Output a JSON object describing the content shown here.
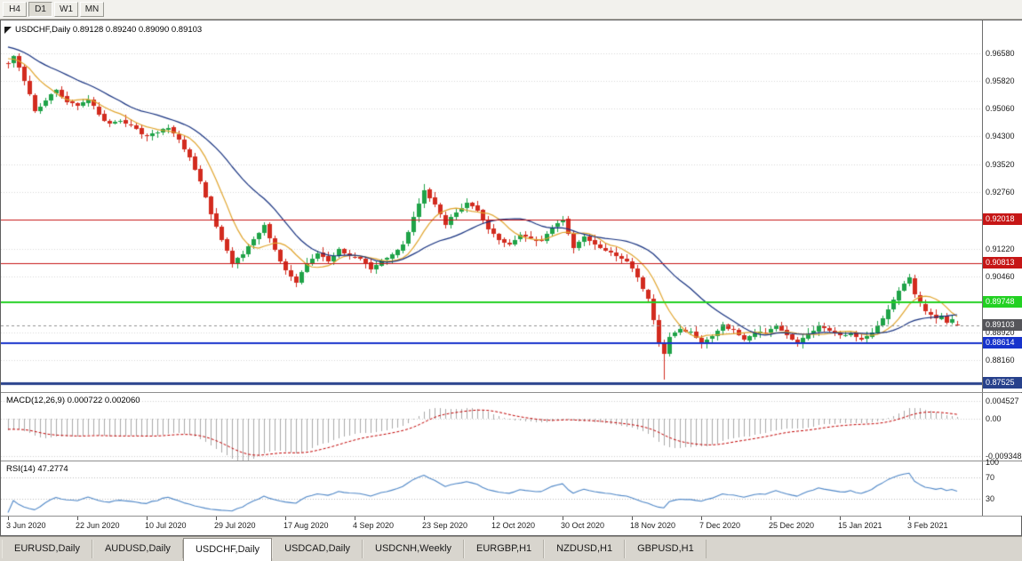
{
  "toolbar": {
    "timeframe_buttons": [
      {
        "label": "H4",
        "active": false
      },
      {
        "label": "D1",
        "active": true
      },
      {
        "label": "W1",
        "active": false
      },
      {
        "label": "MN",
        "active": false
      }
    ]
  },
  "main_chart": {
    "legend": "USDCHF,Daily 0.89128 0.89240 0.89090 0.89103",
    "axis_plain_labels": [
      "0.96580",
      "0.95820",
      "0.95060",
      "0.94300",
      "0.93520",
      "0.92760",
      "0.91220",
      "0.90460",
      "0.88920",
      "0.88160"
    ],
    "current_price_tag": {
      "text": "0.89103",
      "bg": "#55555a"
    },
    "levels": [
      {
        "price": 0.92018,
        "text": "0.92018",
        "color": "#c61616",
        "width": 1
      },
      {
        "price": 0.90813,
        "text": "0.90813",
        "color": "#c61616",
        "width": 1
      },
      {
        "price": 0.89748,
        "text": "0.89748",
        "color": "#22d122",
        "width": 2
      },
      {
        "price": 0.88614,
        "text": "0.88614",
        "color": "#1733cc",
        "width": 2
      },
      {
        "price": 0.87525,
        "text": "0.87525",
        "color": "#27418c",
        "width": 3
      }
    ]
  },
  "macd_panel": {
    "legend": "MACD(12,26,9) 0.000722 0.002060",
    "axis_labels": [
      "0.004527",
      "0.00",
      "-0.009348"
    ]
  },
  "rsi_panel": {
    "legend": "RSI(14) 47.2774",
    "axis_labels": [
      "100",
      "70",
      "30"
    ]
  },
  "time_axis": [
    "3 Jun 2020",
    "22 Jun 2020",
    "10 Jul 2020",
    "29 Jul 2020",
    "17 Aug 2020",
    "4 Sep 2020",
    "23 Sep 2020",
    "12 Oct 2020",
    "30 Oct 2020",
    "18 Nov 2020",
    "7 Dec 2020",
    "25 Dec 2020",
    "15 Jan 2021",
    "3 Feb 2021"
  ],
  "tabs": [
    {
      "label": "EURUSD,Daily",
      "active": false
    },
    {
      "label": "AUDUSD,Daily",
      "active": false
    },
    {
      "label": "USDCHF,Daily",
      "active": true
    },
    {
      "label": "USDCAD,Daily",
      "active": false
    },
    {
      "label": "USDCNH,Weekly",
      "active": false
    },
    {
      "label": "EURGBP,H1",
      "active": false
    },
    {
      "label": "NZDUSD,H1",
      "active": false
    },
    {
      "label": "GBPUSD,H1",
      "active": false
    }
  ],
  "chart_data": {
    "type": "candlestick",
    "title": "USDCHF,Daily",
    "symbol": "USDCHF",
    "timeframe": "Daily",
    "ohlc_current": {
      "open": 0.89128,
      "high": 0.8924,
      "low": 0.8909,
      "close": 0.89103
    },
    "price_range": {
      "top": 0.9748,
      "bottom": 0.8728
    },
    "bars_visible": 179,
    "bars_per_tick": 13,
    "x_tick_labels": [
      "3 Jun 2020",
      "22 Jun 2020",
      "10 Jul 2020",
      "29 Jul 2020",
      "17 Aug 2020",
      "4 Sep 2020",
      "23 Sep 2020",
      "12 Oct 2020",
      "30 Oct 2020",
      "18 Nov 2020",
      "7 Dec 2020",
      "25 Dec 2020",
      "15 Jan 2021",
      "3 Feb 2021"
    ],
    "close_anchors": [
      [
        0,
        0.9628
      ],
      [
        1,
        0.9648
      ],
      [
        2,
        0.9618
      ],
      [
        4,
        0.9545
      ],
      [
        5,
        0.9498
      ],
      [
        7,
        0.953
      ],
      [
        9,
        0.9555
      ],
      [
        11,
        0.9522
      ],
      [
        13,
        0.9515
      ],
      [
        15,
        0.9532
      ],
      [
        17,
        0.9488
      ],
      [
        19,
        0.9462
      ],
      [
        21,
        0.9475
      ],
      [
        24,
        0.9448
      ],
      [
        26,
        0.9428
      ],
      [
        28,
        0.9442
      ],
      [
        30,
        0.9452
      ],
      [
        32,
        0.9418
      ],
      [
        34,
        0.9372
      ],
      [
        36,
        0.9305
      ],
      [
        38,
        0.9218
      ],
      [
        40,
        0.9148
      ],
      [
        42,
        0.9082
      ],
      [
        44,
        0.9108
      ],
      [
        46,
        0.9148
      ],
      [
        48,
        0.9185
      ],
      [
        50,
        0.9118
      ],
      [
        52,
        0.9062
      ],
      [
        54,
        0.9028
      ],
      [
        56,
        0.9082
      ],
      [
        58,
        0.9108
      ],
      [
        60,
        0.9088
      ],
      [
        62,
        0.9118
      ],
      [
        64,
        0.9102
      ],
      [
        66,
        0.9092
      ],
      [
        68,
        0.9068
      ],
      [
        70,
        0.9088
      ],
      [
        72,
        0.9108
      ],
      [
        74,
        0.9132
      ],
      [
        76,
        0.9205
      ],
      [
        78,
        0.9282
      ],
      [
        80,
        0.9242
      ],
      [
        82,
        0.9188
      ],
      [
        84,
        0.9222
      ],
      [
        86,
        0.9248
      ],
      [
        88,
        0.9228
      ],
      [
        90,
        0.9172
      ],
      [
        92,
        0.9148
      ],
      [
        94,
        0.9132
      ],
      [
        96,
        0.9162
      ],
      [
        98,
        0.9148
      ],
      [
        100,
        0.9142
      ],
      [
        102,
        0.9182
      ],
      [
        104,
        0.9202
      ],
      [
        106,
        0.9122
      ],
      [
        108,
        0.9158
      ],
      [
        110,
        0.9132
      ],
      [
        112,
        0.9118
      ],
      [
        114,
        0.9102
      ],
      [
        116,
        0.9088
      ],
      [
        118,
        0.9042
      ],
      [
        120,
        0.8982
      ],
      [
        122,
        0.8868
      ],
      [
        123,
        0.8832
      ],
      [
        124,
        0.8882
      ],
      [
        126,
        0.8902
      ],
      [
        128,
        0.8892
      ],
      [
        130,
        0.8858
      ],
      [
        132,
        0.8882
      ],
      [
        134,
        0.8912
      ],
      [
        136,
        0.8898
      ],
      [
        138,
        0.8872
      ],
      [
        140,
        0.8888
      ],
      [
        142,
        0.8892
      ],
      [
        144,
        0.8912
      ],
      [
        146,
        0.8882
      ],
      [
        148,
        0.8862
      ],
      [
        150,
        0.8888
      ],
      [
        152,
        0.8908
      ],
      [
        154,
        0.8898
      ],
      [
        156,
        0.8882
      ],
      [
        158,
        0.8888
      ],
      [
        160,
        0.8872
      ],
      [
        162,
        0.8892
      ],
      [
        164,
        0.8932
      ],
      [
        166,
        0.8982
      ],
      [
        168,
        0.9028
      ],
      [
        169,
        0.904
      ],
      [
        170,
        0.8998
      ],
      [
        171,
        0.8972
      ],
      [
        172,
        0.8952
      ],
      [
        173,
        0.8942
      ],
      [
        174,
        0.8928
      ],
      [
        175,
        0.8936
      ],
      [
        176,
        0.892
      ],
      [
        177,
        0.8926
      ],
      [
        178,
        0.89103
      ]
    ],
    "spike_low": {
      "index": 123,
      "price": 0.8763
    },
    "peaks": [
      {
        "index": 78,
        "high": 0.9298
      },
      {
        "index": 169,
        "high": 0.9047
      }
    ],
    "horizontal_levels": [
      0.92018,
      0.90813,
      0.89748,
      0.88614,
      0.87525
    ],
    "moving_averages": [
      {
        "period": 8,
        "color": "#e0a42c"
      },
      {
        "period": 21,
        "color": "#16317f"
      }
    ],
    "macd": {
      "fast": 12,
      "slow": 26,
      "signal": 9,
      "current_main": 0.000722,
      "current_signal": 0.00206,
      "range": [
        -0.0105,
        0.0065
      ],
      "histogram_color": "#a8a8a8",
      "signal_color": "#c00000"
    },
    "rsi": {
      "period": 14,
      "current": 47.2774,
      "levels": [
        70,
        30
      ],
      "range": [
        0,
        100
      ],
      "color": "#4f87c7"
    },
    "candle_colors": {
      "bull": "#1fa348",
      "bear": "#d22b1f"
    }
  }
}
